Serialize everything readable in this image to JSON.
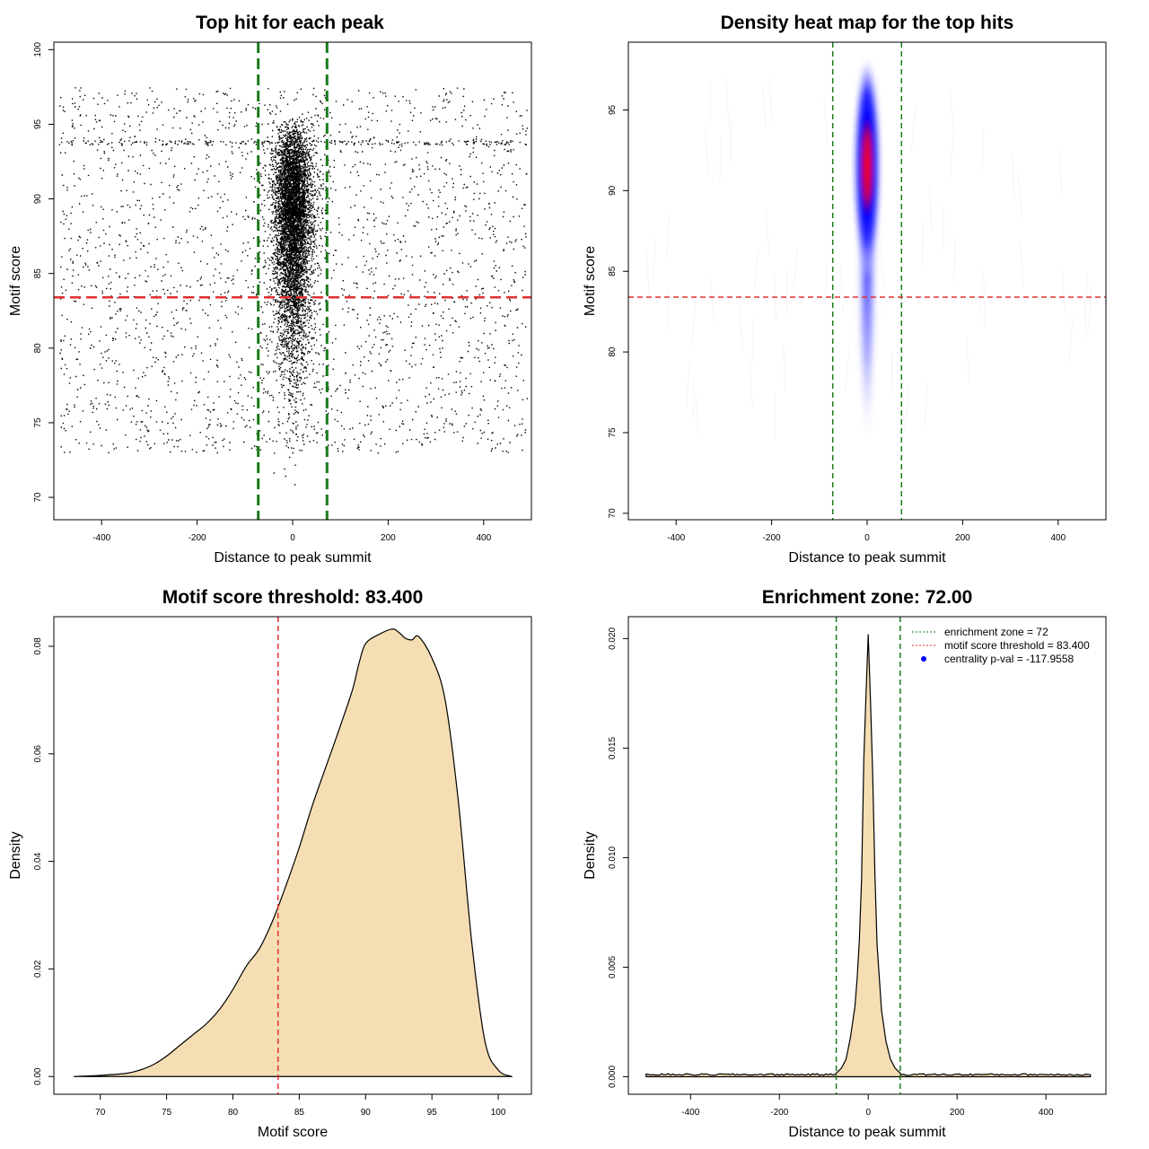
{
  "chart_data": [
    {
      "id": "scatter",
      "type": "scatter",
      "title": "Top hit for each peak",
      "xlabel": "Distance to peak summit",
      "ylabel": "Motif score",
      "xlim": [
        -500,
        500
      ],
      "ylim": [
        68.5,
        100.5
      ],
      "xticks": [
        -400,
        -200,
        0,
        200,
        400
      ],
      "yticks": [
        70,
        75,
        80,
        85,
        90,
        95,
        100
      ],
      "xtick_labels": [
        "-400",
        "-200",
        "0",
        "200",
        "400"
      ],
      "ytick_labels": [
        "70",
        "75",
        "80",
        "85",
        "90",
        "95",
        "100"
      ],
      "vlines": [
        -72,
        72
      ],
      "hline": 83.4,
      "line_colors": {
        "enrichment": "#1a7a1a",
        "threshold": "#e03030"
      },
      "point_color": "#000000",
      "background_points": 2600,
      "central_points": 22000,
      "central_sd": 18
    },
    {
      "id": "heatmap",
      "type": "heatmap",
      "title": "Density heat map for the top hits",
      "xlabel": "Distance to peak summit",
      "ylabel": "Motif score",
      "xlim": [
        -500,
        500
      ],
      "ylim": [
        69.6,
        99.2
      ],
      "xticks": [
        -400,
        -200,
        0,
        200,
        400
      ],
      "yticks": [
        70,
        75,
        80,
        85,
        90,
        95
      ],
      "xtick_labels": [
        "-400",
        "-200",
        "0",
        "200",
        "400"
      ],
      "ytick_labels": [
        "70",
        "75",
        "80",
        "85",
        "90",
        "95"
      ],
      "vlines": [
        -72,
        72
      ],
      "hline": 83.4,
      "hotspot": {
        "x": 0,
        "y": 91.5
      },
      "colors": {
        "low": "#ffffff",
        "mid": "#0000ff",
        "high": "#ff0000"
      }
    },
    {
      "id": "scoredens",
      "type": "area",
      "title": "Motif score threshold: 83.400",
      "xlabel": "Motif score",
      "ylabel": "Density",
      "xlim": [
        66.5,
        102.5
      ],
      "ylim": [
        -0.0033,
        0.0855
      ],
      "xticks": [
        70,
        75,
        80,
        85,
        90,
        95,
        100
      ],
      "yticks": [
        0,
        0.02,
        0.04,
        0.06,
        0.08
      ],
      "xtick_labels": [
        "70",
        "75",
        "80",
        "85",
        "90",
        "95",
        "100"
      ],
      "ytick_labels": [
        "0.00",
        "0.02",
        "0.04",
        "0.06",
        "0.08"
      ],
      "vline": 83.4,
      "fill": "#f5deb3",
      "x": [
        68,
        70,
        72,
        73,
        74,
        75,
        76,
        77,
        78,
        79,
        80,
        81,
        82,
        83,
        84,
        85,
        86,
        87,
        88,
        89,
        89.5,
        90,
        91,
        92,
        92.5,
        93,
        93.5,
        94,
        95,
        96,
        97,
        98,
        99,
        100,
        101
      ],
      "y": [
        0,
        0.0002,
        0.0006,
        0.0012,
        0.0022,
        0.0038,
        0.0058,
        0.0078,
        0.0098,
        0.0125,
        0.0162,
        0.0205,
        0.0238,
        0.029,
        0.0355,
        0.0426,
        0.0505,
        0.0575,
        0.0645,
        0.0718,
        0.0768,
        0.0805,
        0.0822,
        0.0832,
        0.0826,
        0.0815,
        0.0812,
        0.0818,
        0.0778,
        0.07,
        0.051,
        0.025,
        0.0065,
        0.0012,
        0
      ]
    },
    {
      "id": "distdens",
      "type": "area",
      "title": "Enrichment zone: 72.00",
      "xlabel": "Distance to peak summit",
      "ylabel": "Density",
      "xlim": [
        -540,
        535
      ],
      "ylim": [
        -0.0008,
        0.021
      ],
      "xticks": [
        -400,
        -200,
        0,
        200,
        400
      ],
      "yticks": [
        0,
        0.005,
        0.01,
        0.015,
        0.02
      ],
      "xtick_labels": [
        "-400",
        "-200",
        "0",
        "200",
        "400"
      ],
      "ytick_labels": [
        "0.000",
        "0.005",
        "0.010",
        "0.015",
        "0.020"
      ],
      "vlines": [
        -72,
        72
      ],
      "fill": "#f5deb3",
      "baseline": 0.0001,
      "x": [
        -500,
        -70,
        -60,
        -50,
        -40,
        -30,
        -25,
        -20,
        -15,
        -10,
        -5,
        0,
        5,
        10,
        15,
        20,
        25,
        30,
        40,
        50,
        60,
        70,
        500
      ],
      "y": [
        0.0001,
        0.0002,
        0.0004,
        0.0008,
        0.0018,
        0.0032,
        0.0045,
        0.0062,
        0.009,
        0.0145,
        0.0175,
        0.0202,
        0.0172,
        0.0138,
        0.0092,
        0.006,
        0.0045,
        0.003,
        0.0016,
        0.0008,
        0.0004,
        0.0002,
        0.0001
      ],
      "legend": {
        "position": "top-right",
        "entries": [
          {
            "label": "enrichment zone = 72",
            "color": "#1a7a1a",
            "style": "dotted"
          },
          {
            "label": "motif score threshold = 83.400",
            "color": "#e03030",
            "style": "dotted"
          },
          {
            "label": "centrality p-val = -117.9558",
            "color": "#0000ff",
            "style": "point"
          }
        ]
      }
    }
  ]
}
